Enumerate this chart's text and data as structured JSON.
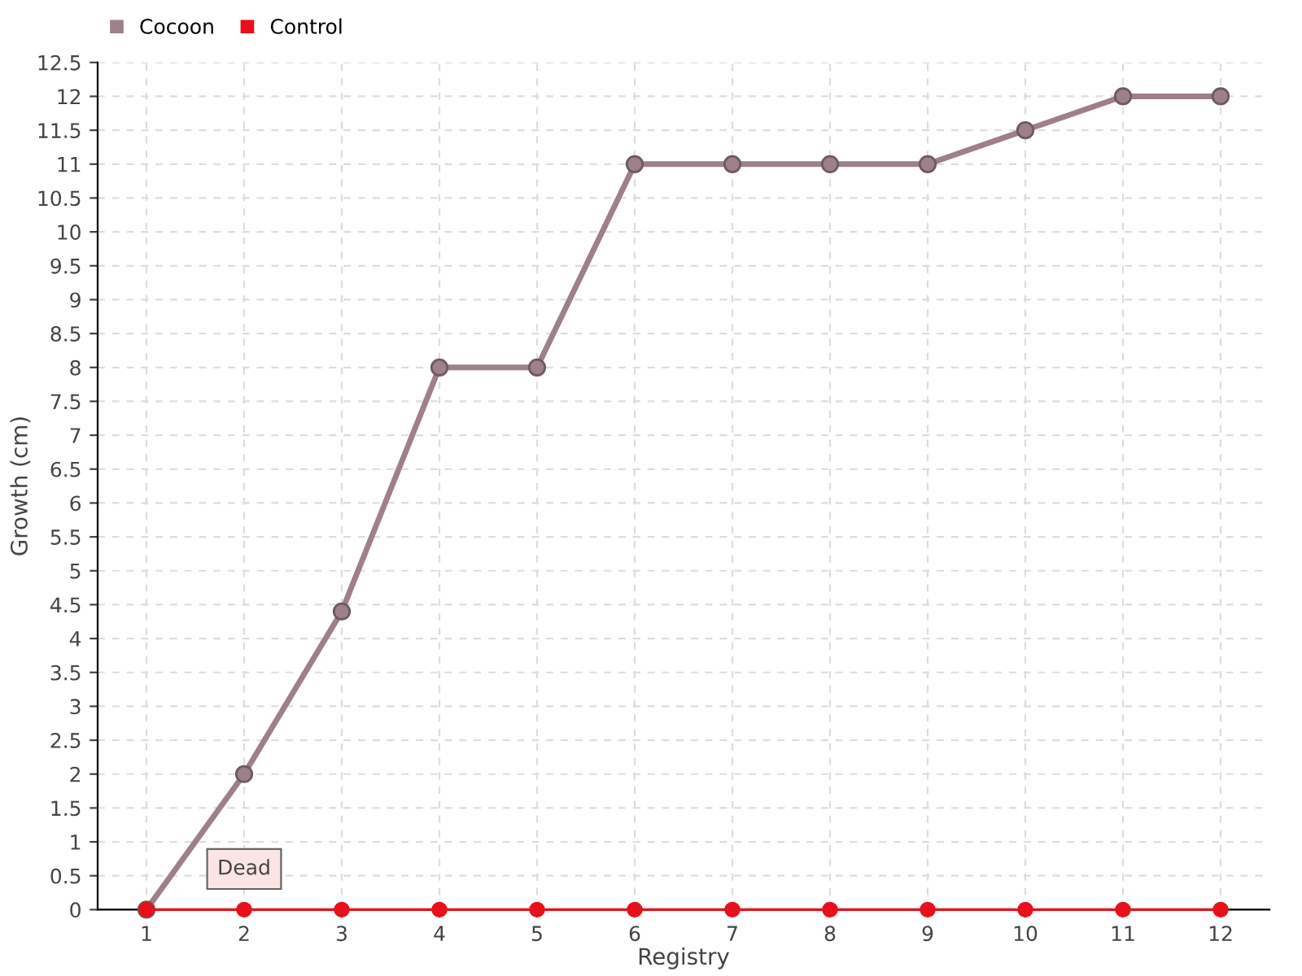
{
  "chart_data": {
    "type": "line",
    "xlabel": "Registry",
    "ylabel": "Growth (cm)",
    "categories": [
      "1",
      "2",
      "3",
      "4",
      "5",
      "6",
      "7",
      "8",
      "9",
      "10",
      "11",
      "12"
    ],
    "series": [
      {
        "name": "Cocoon",
        "color": "#9e8088",
        "values": [
          0,
          2,
          4.4,
          8,
          8,
          11,
          11,
          11,
          11,
          11.5,
          12,
          12
        ]
      },
      {
        "name": "Control",
        "color": "#e8101a",
        "values": [
          0,
          0,
          0,
          0,
          0,
          0,
          0,
          0,
          0,
          0,
          0,
          0
        ]
      }
    ],
    "ylim": [
      0,
      12.5
    ],
    "yticks": [
      0,
      0.5,
      1,
      1.5,
      2,
      2.5,
      3,
      3.5,
      4,
      4.5,
      5,
      5.5,
      6,
      6.5,
      7,
      7.5,
      8,
      8.5,
      9,
      9.5,
      10,
      10.5,
      11,
      11.5,
      12,
      12.5
    ],
    "grid": true,
    "legend": "top left",
    "marker": "circle",
    "annotations": [
      {
        "text": "Dead",
        "x": "2",
        "y": 0
      }
    ]
  }
}
